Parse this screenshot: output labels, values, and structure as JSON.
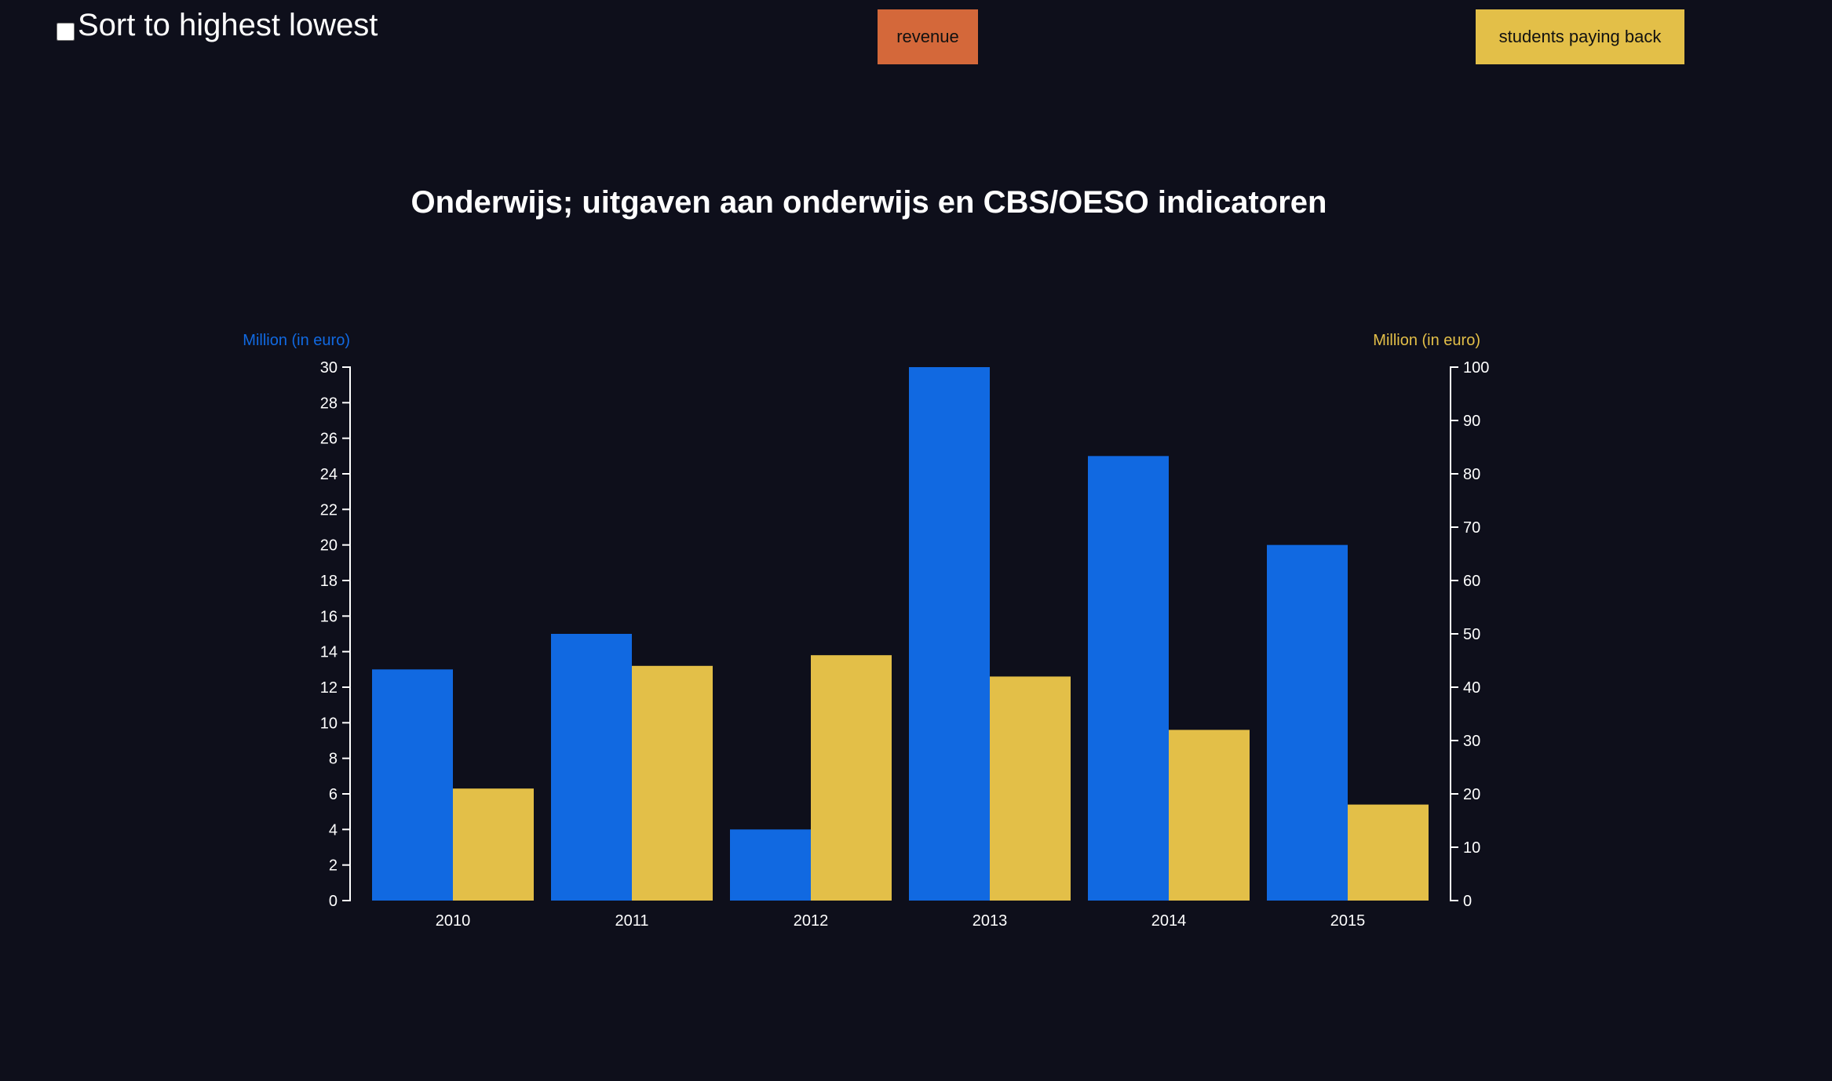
{
  "controls": {
    "sort_label": "Sort to highest lowest",
    "revenue_button": "revenue",
    "students_button": "students paying back"
  },
  "colors": {
    "background": "#0e0f1b",
    "revenue": "#1169e1",
    "students": "#e3bf48",
    "revenue_button": "#d4683a",
    "text": "#ffffff"
  },
  "chart_data": {
    "type": "bar",
    "title": "Onderwijs; uitgaven aan onderwijs en CBS/OESO indicatoren",
    "categories": [
      "2010",
      "2011",
      "2012",
      "2013",
      "2014",
      "2015"
    ],
    "left_axis": {
      "label": "Million (in euro)",
      "ylim": [
        0,
        30
      ],
      "ticks": [
        "0",
        "2",
        "4",
        "6",
        "8",
        "10",
        "12",
        "14",
        "16",
        "18",
        "20",
        "22",
        "24",
        "26",
        "28",
        "30"
      ]
    },
    "right_axis": {
      "label": "Million (in euro)",
      "ylim": [
        0,
        100
      ],
      "ticks": [
        "0",
        "10",
        "20",
        "30",
        "40",
        "50",
        "60",
        "70",
        "80",
        "90",
        "100"
      ]
    },
    "series": [
      {
        "axis": "left",
        "values": [
          13,
          15,
          4,
          30,
          25,
          20
        ]
      },
      {
        "axis": "right",
        "values": [
          21,
          44,
          46,
          42,
          32,
          18
        ]
      }
    ],
    "grid": false
  }
}
